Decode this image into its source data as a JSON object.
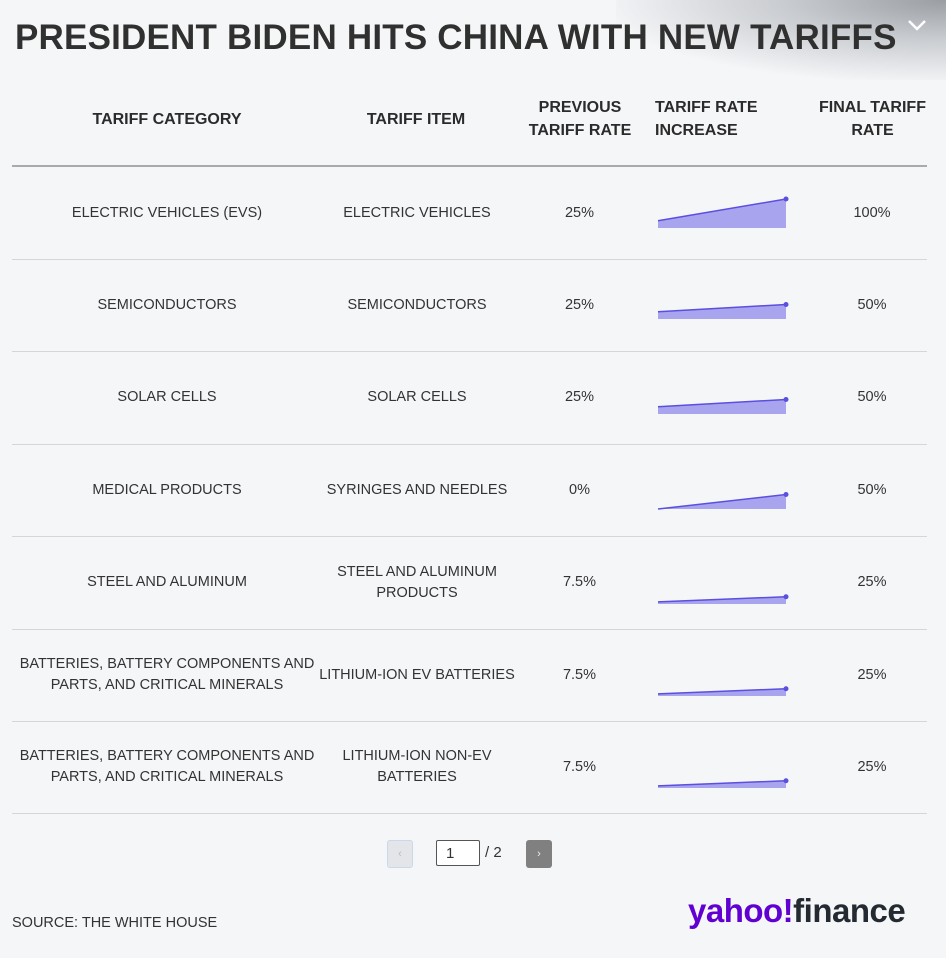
{
  "title": "PRESIDENT BIDEN HITS CHINA WITH NEW TARIFFS",
  "colors": {
    "accent": "#5b4fe0",
    "fill": "#a9a4ee",
    "logo_purple": "#6001d2"
  },
  "chart_data": {
    "type": "table",
    "columns": [
      "TARIFF CATEGORY",
      "TARIFF ITEM",
      "PREVIOUS TARIFF RATE",
      "TARIFF RATE INCREASE",
      "FINAL TARIFF RATE"
    ],
    "rows": [
      {
        "category": "ELECTRIC VEHICLES (EVS)",
        "item": "ELECTRIC VEHICLES",
        "previous": "25%",
        "final": "100%",
        "prev_value": 25,
        "final_value": 100
      },
      {
        "category": "SEMICONDUCTORS",
        "item": "SEMICONDUCTORS",
        "previous": "25%",
        "final": "50%",
        "prev_value": 25,
        "final_value": 50
      },
      {
        "category": "SOLAR CELLS",
        "item": "SOLAR CELLS",
        "previous": "25%",
        "final": "50%",
        "prev_value": 25,
        "final_value": 50
      },
      {
        "category": "MEDICAL PRODUCTS",
        "item": "SYRINGES AND NEEDLES",
        "previous": "0%",
        "final": "50%",
        "prev_value": 0,
        "final_value": 50
      },
      {
        "category": "STEEL AND ALUMINUM",
        "item": "STEEL AND ALUMINUM PRODUCTS",
        "previous": "7.5%",
        "final": "25%",
        "prev_value": 7.5,
        "final_value": 25
      },
      {
        "category": "BATTERIES, BATTERY COMPONENTS AND PARTS, AND CRITICAL MINERALS",
        "item": "LITHIUM-ION EV BATTERIES",
        "previous": "7.5%",
        "final": "25%",
        "prev_value": 7.5,
        "final_value": 25
      },
      {
        "category": "BATTERIES, BATTERY COMPONENTS AND PARTS, AND CRITICAL MINERALS",
        "item": "LITHIUM-ION NON-EV BATTERIES",
        "previous": "7.5%",
        "final": "25%",
        "prev_value": 7.5,
        "final_value": 25
      }
    ],
    "sparkline_max": 100
  },
  "pagination": {
    "prev": "‹",
    "next": "›",
    "current": "1",
    "total": "/ 2"
  },
  "source": "SOURCE: THE WHITE HOUSE",
  "logo": {
    "yahoo": "yahoo!",
    "finance": "finance"
  }
}
